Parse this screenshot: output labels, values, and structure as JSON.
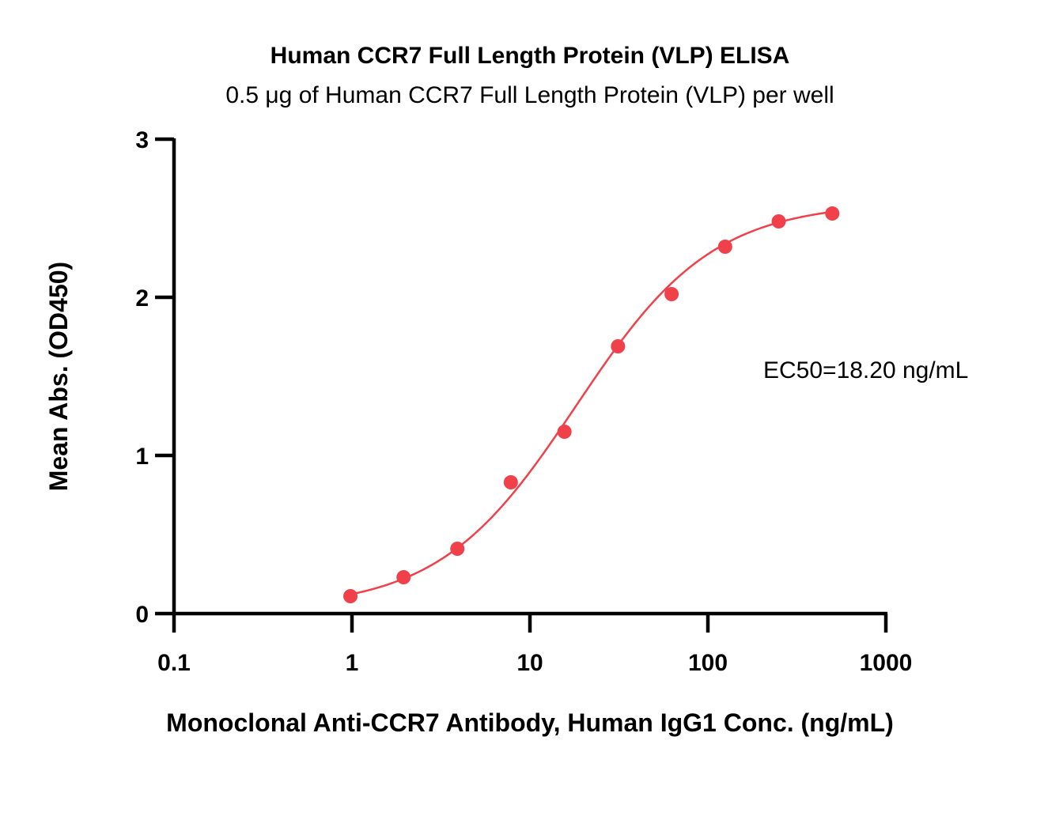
{
  "chart_data": {
    "type": "scatter",
    "title": "Human CCR7 Full Length Protein (VLP) ELISA",
    "subtitle": "0.5 μg of Human CCR7 Full Length Protein (VLP) per well",
    "xlabel": "Monoclonal Anti-CCR7 Antibody, Human IgG1 Conc. (ng/mL)",
    "ylabel": "Mean Abs. (OD450)",
    "xscale": "log",
    "xlim": [
      0.1,
      1000
    ],
    "ylim": [
      0,
      3
    ],
    "x_ticks": [
      "0.1",
      "1",
      "10",
      "100",
      "1000"
    ],
    "y_ticks": [
      "0",
      "1",
      "2",
      "3"
    ],
    "grid": false,
    "annotation": "EC50=18.20 ng/mL",
    "color": "#f0414a",
    "series": [
      {
        "x": [
          0.98,
          1.95,
          3.91,
          7.81,
          15.63,
          31.25,
          62.5,
          125,
          250,
          500
        ],
        "y": [
          0.11,
          0.23,
          0.41,
          0.83,
          1.15,
          1.69,
          2.02,
          2.32,
          2.48,
          2.53
        ]
      }
    ],
    "fit_curve": {
      "model": "4PL",
      "bottom": 0.03,
      "top": 2.6,
      "ec50": 18.2,
      "hill": 1.13,
      "x_range": [
        0.98,
        500
      ]
    }
  }
}
